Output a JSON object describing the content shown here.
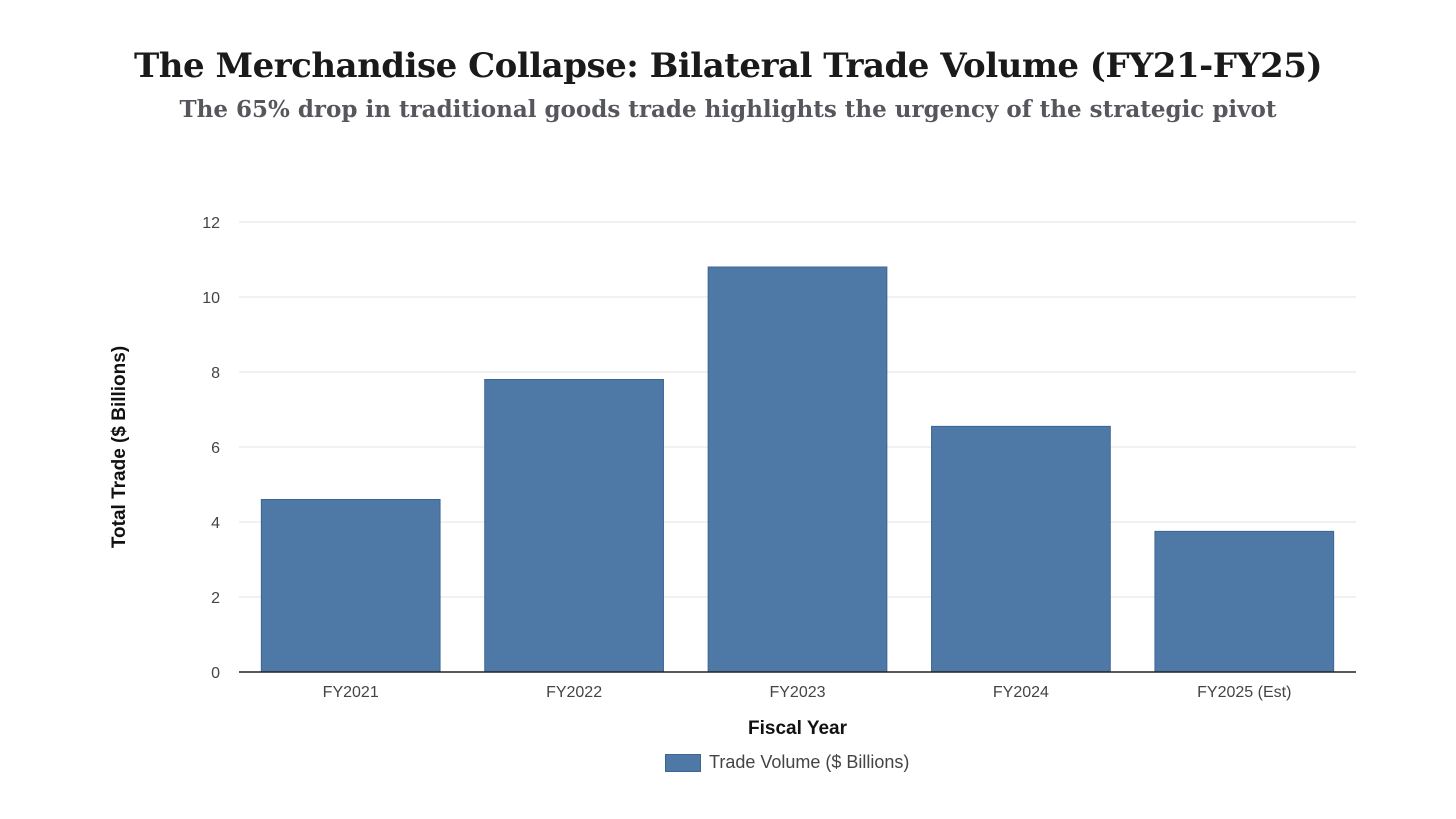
{
  "chart_data": {
    "type": "bar",
    "title": "The Merchandise Collapse: Bilateral Trade Volume (FY21-FY25)",
    "subtitle": "The 65% drop in traditional goods trade highlights the urgency of the strategic pivot",
    "categories": [
      "FY2021",
      "FY2022",
      "FY2023",
      "FY2024",
      "FY2025 (Est)"
    ],
    "series": [
      {
        "name": "Trade Volume ($ Billions)",
        "values": [
          4.6,
          7.8,
          10.8,
          6.55,
          3.75
        ],
        "color": "#4e79a7"
      }
    ],
    "xlabel": "Fiscal Year",
    "ylabel": "Total Trade ($ Billions)",
    "ylim": [
      0,
      12
    ],
    "yticks": [
      "0",
      "2",
      "4",
      "6",
      "8",
      "10",
      "12"
    ],
    "grid": true,
    "legend_position": "bottom-center"
  }
}
